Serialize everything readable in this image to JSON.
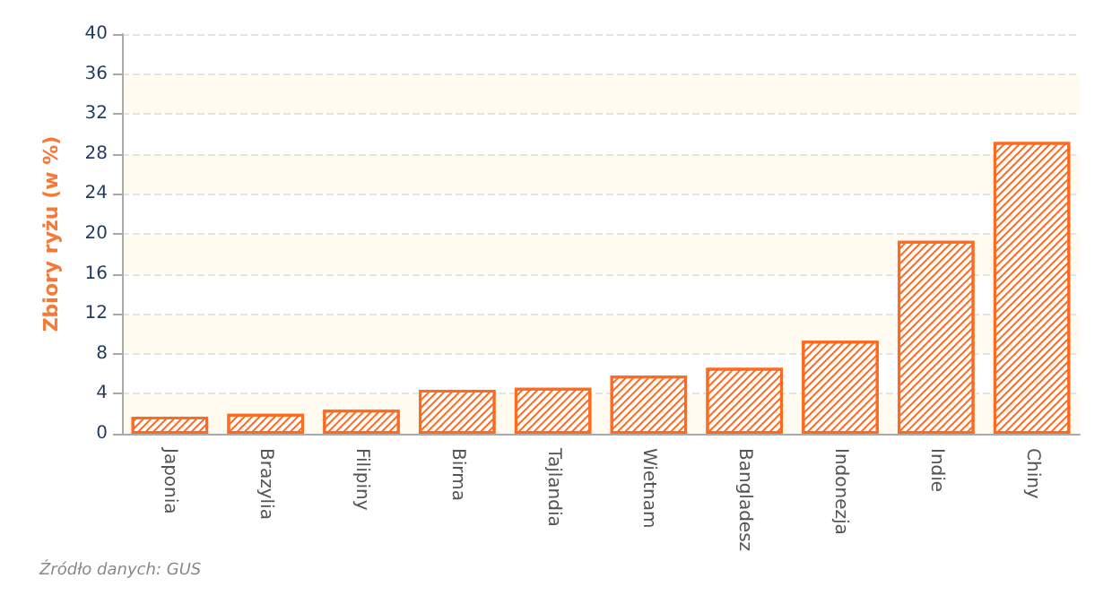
{
  "chart_data": {
    "type": "bar",
    "ylabel": "Zbiory ryżu (w %)",
    "categories": [
      "Japonia",
      "Brazylia",
      "Filipiny",
      "Birma",
      "Tajlandia",
      "Wietnam",
      "Bangladesz",
      "Indonezja",
      "Indie",
      "Chiny"
    ],
    "values": [
      1.7,
      2.0,
      2.4,
      4.4,
      4.6,
      5.8,
      6.6,
      9.3,
      19.3,
      29.2
    ],
    "color": "#ff6a1f",
    "ylim": [
      0,
      40
    ],
    "yticks": [
      0,
      4,
      8,
      12,
      16,
      20,
      24,
      28,
      32,
      36,
      40
    ],
    "grid": "y",
    "annotations": [
      "Źródło danych: GUS"
    ]
  }
}
